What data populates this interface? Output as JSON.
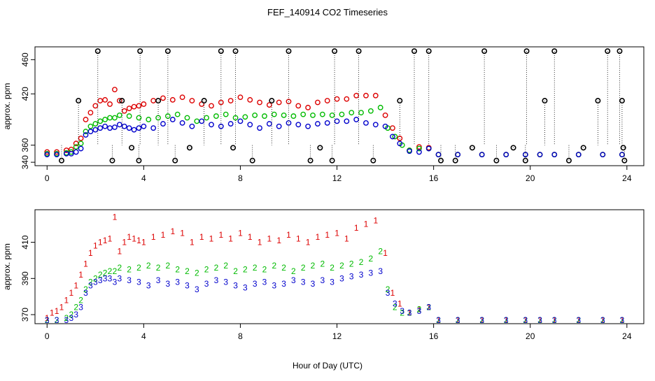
{
  "figure": {
    "title": "FEF_140914  CO2 Timeseries",
    "xlabel": "Hour of Day (UTC)"
  },
  "colors": {
    "series1": "#dd0000",
    "series2": "#00bb00",
    "series3": "#0000cc",
    "spike": "#000000",
    "cyan_marker": "#00cccc",
    "frame": "#000000"
  },
  "chart_data": [
    {
      "type": "scatter",
      "panel": "top",
      "ylabel": "approx. ppm",
      "xlim": [
        -0.5,
        24.7
      ],
      "ylim": [
        336,
        475
      ],
      "xticks": [
        0,
        4,
        8,
        12,
        16,
        20,
        24
      ],
      "yticks": [
        340,
        360,
        420,
        460
      ],
      "ytick_labels": [
        "340",
        "360",
        "420",
        "460"
      ],
      "grid": false,
      "marker": "circle",
      "description_series": [
        "red circles",
        "green circles",
        "blue circles",
        "black outlier circles with dotted vertical lines"
      ],
      "series": [
        {
          "color_key": "series1",
          "x": [
            0.0,
            0.4,
            0.8,
            1.0,
            1.2,
            1.4,
            1.6,
            1.8,
            2.0,
            2.2,
            2.4,
            2.6,
            2.8,
            3.0,
            3.2,
            3.4,
            3.6,
            3.8,
            4.0,
            4.4,
            4.8,
            5.2,
            5.6,
            6.0,
            6.4,
            6.8,
            7.2,
            7.6,
            8.0,
            8.4,
            8.8,
            9.2,
            9.6,
            10.0,
            10.4,
            10.8,
            11.2,
            11.6,
            12.0,
            12.4,
            12.8,
            13.2,
            13.6,
            14.0,
            14.3,
            14.6,
            15.0,
            15.4,
            15.8,
            16.2,
            17.0,
            18.0,
            19.0,
            19.8,
            20.4,
            21.0,
            22.0,
            23.0,
            23.8
          ],
          "y": [
            352,
            352,
            354,
            355,
            362,
            368,
            390,
            398,
            406,
            412,
            413,
            408,
            425,
            412,
            400,
            403,
            405,
            406,
            408,
            412,
            415,
            413,
            416,
            412,
            408,
            406,
            410,
            412,
            416,
            413,
            410,
            407,
            410,
            411,
            406,
            404,
            410,
            412,
            414,
            414,
            418,
            418,
            418,
            395,
            380,
            368,
            354,
            358,
            357,
            349,
            349,
            349,
            349,
            349,
            349,
            349,
            349,
            349,
            349
          ]
        },
        {
          "color_key": "series2",
          "x": [
            0.0,
            0.4,
            0.8,
            1.0,
            1.2,
            1.4,
            1.6,
            1.8,
            2.0,
            2.2,
            2.4,
            2.6,
            2.8,
            3.0,
            3.4,
            3.8,
            4.2,
            4.6,
            5.0,
            5.4,
            5.8,
            6.2,
            6.6,
            7.0,
            7.4,
            7.8,
            8.2,
            8.6,
            9.0,
            9.4,
            9.8,
            10.2,
            10.6,
            11.0,
            11.4,
            11.8,
            12.2,
            12.6,
            13.0,
            13.4,
            13.8,
            14.1,
            14.4,
            14.7,
            15.0,
            15.4,
            15.8,
            16.2,
            17.0,
            18.0,
            19.0,
            19.8,
            20.4,
            21.0,
            22.0,
            23.0,
            23.8
          ],
          "y": [
            350,
            350,
            351,
            352,
            358,
            362,
            376,
            382,
            385,
            388,
            390,
            392,
            392,
            395,
            394,
            392,
            390,
            392,
            394,
            396,
            392,
            388,
            392,
            394,
            396,
            392,
            393,
            395,
            394,
            396,
            395,
            394,
            396,
            395,
            396,
            395,
            396,
            398,
            398,
            400,
            404,
            380,
            370,
            360,
            354,
            356,
            356,
            349,
            349,
            349,
            349,
            349,
            349,
            349,
            349,
            349,
            349
          ]
        },
        {
          "color_key": "series3",
          "x": [
            0.0,
            0.4,
            0.8,
            1.0,
            1.2,
            1.4,
            1.6,
            1.8,
            2.0,
            2.2,
            2.4,
            2.6,
            2.8,
            3.0,
            3.2,
            3.4,
            3.6,
            3.8,
            4.0,
            4.4,
            4.8,
            5.2,
            5.6,
            6.0,
            6.4,
            6.8,
            7.2,
            7.6,
            8.0,
            8.4,
            8.8,
            9.2,
            9.6,
            10.0,
            10.4,
            10.8,
            11.2,
            11.6,
            12.0,
            12.4,
            12.8,
            13.2,
            13.6,
            14.0,
            14.3,
            14.6,
            15.0,
            15.4,
            15.8,
            16.2,
            17.0,
            18.0,
            19.0,
            19.8,
            20.4,
            21.0,
            22.0,
            23.0,
            23.8
          ],
          "y": [
            349,
            349,
            350,
            350,
            352,
            356,
            372,
            376,
            378,
            380,
            382,
            380,
            381,
            384,
            382,
            380,
            378,
            380,
            382,
            380,
            385,
            390,
            386,
            382,
            388,
            384,
            382,
            385,
            388,
            384,
            380,
            385,
            382,
            386,
            384,
            382,
            385,
            386,
            388,
            388,
            390,
            386,
            384,
            382,
            370,
            362,
            353,
            352,
            356,
            349,
            349,
            349,
            349,
            349,
            349,
            349,
            349,
            349,
            349
          ]
        },
        {
          "color_key": "spike",
          "kind": "outliers",
          "x": [
            0.6,
            1.3,
            2.1,
            2.7,
            3.1,
            3.5,
            3.8,
            3.85,
            4.6,
            5.0,
            5.3,
            5.9,
            6.5,
            7.2,
            7.7,
            7.8,
            8.5,
            9.3,
            10.0,
            10.9,
            11.3,
            11.8,
            11.9,
            12.9,
            13.5,
            14.6,
            15.2,
            15.8,
            16.3,
            16.9,
            17.6,
            18.1,
            18.6,
            19.3,
            19.8,
            19.85,
            20.6,
            21.0,
            21.6,
            22.2,
            22.8,
            23.2,
            23.7,
            23.8,
            23.85,
            23.9
          ],
          "y": [
            342,
            412,
            470,
            342,
            412,
            357,
            342,
            470,
            412,
            470,
            342,
            357,
            412,
            470,
            357,
            470,
            342,
            412,
            470,
            342,
            357,
            342,
            470,
            470,
            342,
            412,
            470,
            470,
            342,
            342,
            357,
            470,
            342,
            357,
            342,
            470,
            412,
            470,
            342,
            357,
            412,
            470,
            470,
            412,
            357,
            342
          ]
        }
      ]
    },
    {
      "type": "scatter",
      "panel": "bottom",
      "ylabel": "approx. ppm",
      "xlim": [
        -0.5,
        24.7
      ],
      "ylim": [
        365,
        428
      ],
      "xticks": [
        0,
        4,
        8,
        12,
        16,
        20,
        24
      ],
      "yticks": [
        370,
        390,
        410
      ],
      "ytick_labels": [
        "370",
        "390",
        "410"
      ],
      "grid": false,
      "marker_labels": [
        "1",
        "2",
        "3"
      ],
      "series": [
        {
          "name": "1",
          "color_key": "series1",
          "x": [
            0.0,
            0.2,
            0.4,
            0.6,
            0.8,
            1.0,
            1.2,
            1.4,
            1.6,
            1.8,
            2.0,
            2.2,
            2.4,
            2.6,
            2.8,
            3.0,
            3.2,
            3.4,
            3.6,
            3.8,
            4.0,
            4.4,
            4.8,
            5.2,
            5.6,
            6.0,
            6.4,
            6.8,
            7.2,
            7.6,
            8.0,
            8.4,
            8.8,
            9.2,
            9.6,
            10.0,
            10.4,
            10.8,
            11.2,
            11.6,
            12.0,
            12.4,
            12.8,
            13.2,
            13.6,
            14.0,
            14.3,
            14.6,
            15.0,
            15.4,
            15.8,
            16.2,
            17.0,
            18.0,
            19.0,
            19.8,
            20.4,
            21.0,
            22.0,
            23.0,
            23.8
          ],
          "y": [
            368,
            371,
            372,
            374,
            378,
            382,
            386,
            392,
            398,
            404,
            408,
            410,
            411,
            412,
            424,
            405,
            410,
            413,
            412,
            411,
            410,
            413,
            414,
            416,
            415,
            410,
            413,
            412,
            414,
            412,
            415,
            413,
            410,
            412,
            411,
            414,
            412,
            410,
            413,
            414,
            415,
            412,
            418,
            420,
            422,
            404,
            382,
            376,
            371,
            373,
            374,
            367,
            367,
            367,
            367,
            367,
            367,
            367,
            367,
            367,
            367
          ]
        },
        {
          "name": "2",
          "color_key": "series2",
          "x": [
            0.0,
            0.4,
            0.8,
            1.0,
            1.2,
            1.4,
            1.6,
            1.8,
            2.0,
            2.2,
            2.4,
            2.6,
            2.8,
            3.0,
            3.4,
            3.8,
            4.2,
            4.6,
            5.0,
            5.4,
            5.8,
            6.2,
            6.6,
            7.0,
            7.4,
            7.8,
            8.2,
            8.6,
            9.0,
            9.4,
            9.8,
            10.2,
            10.6,
            11.0,
            11.4,
            11.8,
            12.2,
            12.6,
            13.0,
            13.4,
            13.8,
            14.1,
            14.4,
            14.7,
            15.0,
            15.4,
            15.8,
            16.2,
            17.0,
            18.0,
            19.0,
            19.8,
            20.4,
            21.0,
            22.0,
            23.0,
            23.8
          ],
          "y": [
            367,
            367,
            368,
            370,
            374,
            378,
            384,
            388,
            390,
            392,
            393,
            394,
            394,
            396,
            395,
            396,
            397,
            396,
            397,
            395,
            394,
            393,
            395,
            396,
            397,
            394,
            395,
            396,
            395,
            397,
            396,
            394,
            396,
            397,
            398,
            396,
            397,
            398,
            399,
            401,
            405,
            384,
            374,
            371,
            371,
            373,
            374,
            367,
            367,
            367,
            367,
            367,
            367,
            367,
            367,
            367,
            367
          ]
        },
        {
          "name": "3",
          "color_key": "series3",
          "x": [
            0.0,
            0.4,
            0.8,
            1.0,
            1.2,
            1.4,
            1.6,
            1.8,
            2.0,
            2.2,
            2.4,
            2.6,
            2.8,
            3.0,
            3.4,
            3.8,
            4.2,
            4.6,
            5.0,
            5.4,
            5.8,
            6.2,
            6.6,
            7.0,
            7.4,
            7.8,
            8.2,
            8.6,
            9.0,
            9.4,
            9.8,
            10.2,
            10.6,
            11.0,
            11.4,
            11.8,
            12.2,
            12.6,
            13.0,
            13.4,
            13.8,
            14.1,
            14.4,
            14.7,
            15.0,
            15.4,
            15.8,
            16.2,
            17.0,
            18.0,
            19.0,
            19.8,
            20.4,
            21.0,
            22.0,
            23.0,
            23.8
          ],
          "y": [
            367,
            367,
            367,
            368,
            370,
            374,
            382,
            386,
            388,
            389,
            390,
            390,
            388,
            390,
            389,
            388,
            386,
            389,
            387,
            388,
            386,
            384,
            387,
            389,
            388,
            386,
            385,
            387,
            388,
            386,
            387,
            389,
            388,
            387,
            389,
            388,
            390,
            391,
            392,
            393,
            394,
            382,
            376,
            372,
            371,
            372,
            374,
            367,
            367,
            367,
            367,
            367,
            367,
            367,
            367,
            367,
            367
          ]
        }
      ]
    }
  ]
}
